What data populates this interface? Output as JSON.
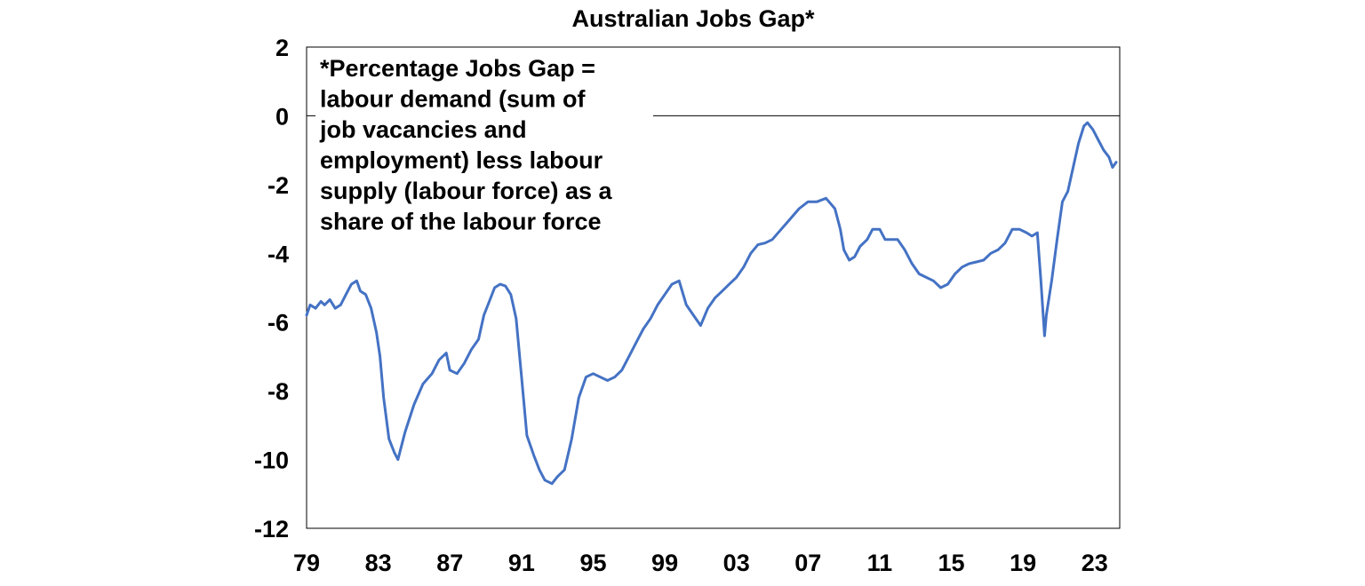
{
  "chart_data": {
    "type": "line",
    "title": "Australian Jobs Gap*",
    "xlabel": "",
    "ylabel": "",
    "annotation": [
      "*Percentage Jobs Gap =",
      "labour demand (sum of",
      "job vacancies and",
      "employment) less labour",
      "supply (labour force) as a",
      "share of the labour force"
    ],
    "x_tick_labels": [
      "79",
      "83",
      "87",
      "91",
      "95",
      "99",
      "03",
      "07",
      "11",
      "15",
      "19",
      "23"
    ],
    "x_tick_years": [
      1979,
      1983,
      1987,
      1991,
      1995,
      1999,
      2003,
      2007,
      2011,
      2015,
      2019,
      2023
    ],
    "xlim": [
      1979,
      2024.4
    ],
    "ylim": [
      -12,
      2
    ],
    "y_ticks": [
      2,
      0,
      -2,
      -4,
      -6,
      -8,
      -10,
      -12
    ],
    "zero_line": true,
    "grid": false,
    "line_color": "#4472C4",
    "series": [
      {
        "x": [
          1979.0,
          1979.2,
          1979.5,
          1979.8,
          1980.0,
          1980.3,
          1980.6,
          1980.9,
          1981.2,
          1981.5,
          1981.8,
          1982.0,
          1982.3,
          1982.6,
          1982.9,
          1983.1,
          1983.3,
          1983.6,
          1983.9,
          1984.1,
          1984.5,
          1985.0,
          1985.5,
          1986.0,
          1986.4,
          1986.8,
          1987.0,
          1987.4,
          1987.8,
          1988.2,
          1988.6,
          1988.9,
          1989.2,
          1989.5,
          1989.8,
          1990.1,
          1990.4,
          1990.7,
          1991.0,
          1991.3,
          1991.7,
          1992.0,
          1992.3,
          1992.7,
          1993.0,
          1993.4,
          1993.8,
          1994.2,
          1994.6,
          1995.0,
          1995.4,
          1995.8,
          1996.2,
          1996.6,
          1997.0,
          1997.4,
          1997.8,
          1998.2,
          1998.6,
          1999.0,
          1999.4,
          1999.8,
          2000.2,
          2000.6,
          2001.0,
          2001.4,
          2001.8,
          2002.2,
          2002.6,
          2003.0,
          2003.4,
          2003.8,
          2004.2,
          2004.6,
          2005.0,
          2005.5,
          2006.0,
          2006.5,
          2007.0,
          2007.5,
          2008.0,
          2008.5,
          2008.8,
          2009.0,
          2009.3,
          2009.6,
          2009.9,
          2010.3,
          2010.6,
          2011.0,
          2011.3,
          2011.7,
          2012.0,
          2012.4,
          2012.8,
          2013.2,
          2013.6,
          2014.0,
          2014.4,
          2014.8,
          2015.2,
          2015.6,
          2016.0,
          2016.4,
          2016.8,
          2017.2,
          2017.6,
          2018.0,
          2018.4,
          2018.8,
          2019.2,
          2019.5,
          2019.8,
          2020.0,
          2020.2,
          2020.3,
          2020.6,
          2020.9,
          2021.2,
          2021.5,
          2021.8,
          2022.1,
          2022.4,
          2022.6,
          2022.9,
          2023.2,
          2023.5,
          2023.8,
          2024.0,
          2024.2
        ],
        "y": [
          -5.8,
          -5.5,
          -5.6,
          -5.4,
          -5.5,
          -5.35,
          -5.6,
          -5.5,
          -5.2,
          -4.9,
          -4.8,
          -5.1,
          -5.2,
          -5.6,
          -6.3,
          -7.0,
          -8.2,
          -9.4,
          -9.8,
          -10.0,
          -9.2,
          -8.4,
          -7.8,
          -7.5,
          -7.1,
          -6.9,
          -7.4,
          -7.5,
          -7.2,
          -6.8,
          -6.5,
          -5.8,
          -5.4,
          -5.0,
          -4.9,
          -4.95,
          -5.2,
          -5.9,
          -7.6,
          -9.3,
          -9.9,
          -10.3,
          -10.6,
          -10.7,
          -10.5,
          -10.3,
          -9.4,
          -8.2,
          -7.6,
          -7.5,
          -7.6,
          -7.7,
          -7.6,
          -7.4,
          -7.0,
          -6.6,
          -6.2,
          -5.9,
          -5.5,
          -5.2,
          -4.9,
          -4.8,
          -5.5,
          -5.8,
          -6.1,
          -5.6,
          -5.3,
          -5.1,
          -4.9,
          -4.7,
          -4.4,
          -4.0,
          -3.75,
          -3.7,
          -3.6,
          -3.3,
          -3.0,
          -2.7,
          -2.5,
          -2.5,
          -2.4,
          -2.7,
          -3.3,
          -3.9,
          -4.2,
          -4.1,
          -3.8,
          -3.6,
          -3.3,
          -3.3,
          -3.6,
          -3.6,
          -3.6,
          -3.9,
          -4.3,
          -4.6,
          -4.7,
          -4.8,
          -5.0,
          -4.9,
          -4.6,
          -4.4,
          -4.3,
          -4.25,
          -4.2,
          -4.0,
          -3.9,
          -3.7,
          -3.3,
          -3.3,
          -3.4,
          -3.5,
          -3.4,
          -4.8,
          -6.4,
          -5.8,
          -4.8,
          -3.6,
          -2.5,
          -2.2,
          -1.5,
          -0.8,
          -0.3,
          -0.2,
          -0.4,
          -0.7,
          -1.0,
          -1.2,
          -1.5,
          -1.35
        ]
      }
    ]
  }
}
